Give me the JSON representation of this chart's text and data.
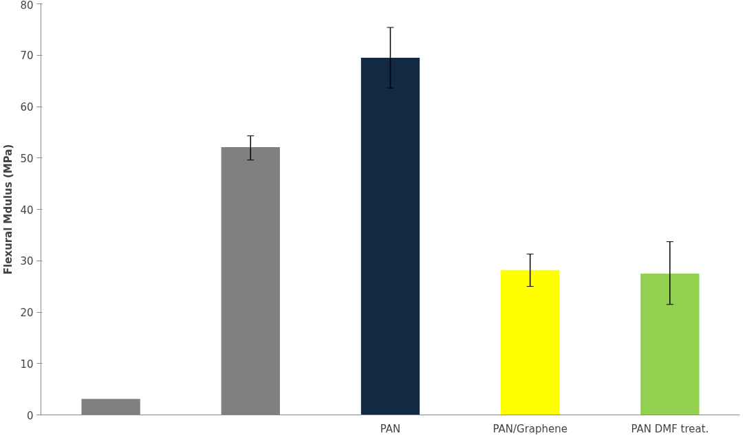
{
  "chart_data": {
    "type": "bar",
    "ylabel": "Flexural Mdulus (MPa)",
    "categories": [
      null,
      null,
      "PAN",
      "PAN/Graphene",
      "PAN DMF treat."
    ],
    "values": [
      3.1,
      52.1,
      69.5,
      28.2,
      27.5
    ],
    "colors": [
      "#808080",
      "#808080",
      "#132841",
      "#ffff00",
      "#92d050"
    ],
    "errors": [
      null,
      [
        49.6,
        54.3
      ],
      [
        63.6,
        75.4
      ],
      [
        25.0,
        31.3
      ],
      [
        21.5,
        33.7
      ]
    ],
    "ylim": [
      0,
      80
    ],
    "yticks": [
      0,
      10,
      20,
      30,
      40,
      50,
      60,
      70,
      80
    ],
    "grid": false
  }
}
